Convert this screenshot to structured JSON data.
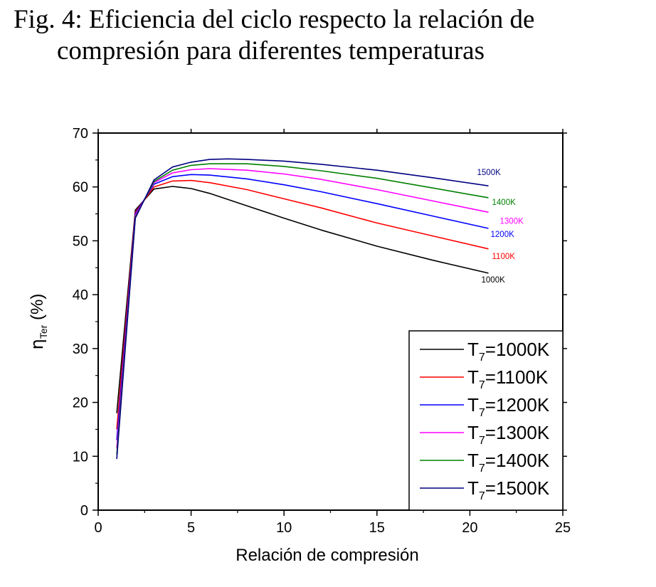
{
  "figure": {
    "title_line1": "Fig. 4: Eficiencia del ciclo respecto la relación de",
    "title_line2": "compresión para diferentes temperaturas"
  },
  "chart_data": {
    "type": "line",
    "xlabel": "Relación de compresión",
    "ylabel_main": "η",
    "ylabel_sub": "Ter",
    "ylabel_unit": " (%)",
    "xlim": [
      0,
      25
    ],
    "ylim": [
      0,
      70
    ],
    "x_ticks": [
      0,
      5,
      10,
      15,
      20,
      25
    ],
    "y_ticks": [
      0,
      10,
      20,
      30,
      40,
      50,
      60,
      70
    ],
    "grid": false,
    "legend_position": "bottom-right",
    "series": [
      {
        "name": "1000K",
        "legend_prefix": "T",
        "legend_sub": "7",
        "legend_suffix": "=1000K",
        "end_label": "1000K",
        "color": "#000000",
        "points": [
          [
            1,
            18.0
          ],
          [
            2,
            55.7
          ],
          [
            3,
            59.6
          ],
          [
            4,
            60.1
          ],
          [
            5,
            59.7
          ],
          [
            6,
            58.8
          ],
          [
            8,
            56.5
          ],
          [
            10,
            54.2
          ],
          [
            12,
            52.0
          ],
          [
            15,
            49.0
          ],
          [
            18,
            46.4
          ],
          [
            21,
            44.0
          ]
        ]
      },
      {
        "name": "1100K",
        "legend_prefix": "T",
        "legend_sub": "7",
        "legend_suffix": "=1100K",
        "end_label": "1100K",
        "color": "#ff0000",
        "points": [
          [
            1,
            15.0
          ],
          [
            2,
            55.3
          ],
          [
            3,
            60.0
          ],
          [
            4,
            61.1
          ],
          [
            5,
            61.2
          ],
          [
            6,
            60.8
          ],
          [
            8,
            59.5
          ],
          [
            10,
            57.8
          ],
          [
            12,
            56.1
          ],
          [
            15,
            53.3
          ],
          [
            18,
            50.9
          ],
          [
            21,
            48.5
          ]
        ]
      },
      {
        "name": "1200K",
        "legend_prefix": "T",
        "legend_sub": "7",
        "legend_suffix": "=1200K",
        "end_label": "1200K",
        "color": "#0000ff",
        "points": [
          [
            1,
            13.0
          ],
          [
            2,
            55.0
          ],
          [
            3,
            60.5
          ],
          [
            4,
            61.9
          ],
          [
            5,
            62.3
          ],
          [
            6,
            62.2
          ],
          [
            8,
            61.5
          ],
          [
            10,
            60.4
          ],
          [
            12,
            59.1
          ],
          [
            15,
            56.9
          ],
          [
            18,
            54.6
          ],
          [
            21,
            52.3
          ]
        ]
      },
      {
        "name": "1300K",
        "legend_prefix": "T",
        "legend_sub": "7",
        "legend_suffix": "=1300K",
        "end_label": "1300K",
        "color": "#ff00ff",
        "points": [
          [
            1,
            11.5
          ],
          [
            2,
            54.7
          ],
          [
            3,
            60.8
          ],
          [
            4,
            62.6
          ],
          [
            5,
            63.2
          ],
          [
            6,
            63.4
          ],
          [
            8,
            63.1
          ],
          [
            10,
            62.4
          ],
          [
            12,
            61.4
          ],
          [
            15,
            59.5
          ],
          [
            18,
            57.4
          ],
          [
            21,
            55.3
          ]
        ]
      },
      {
        "name": "1400K",
        "legend_prefix": "T",
        "legend_sub": "7",
        "legend_suffix": "=1400K",
        "end_label": "1400K",
        "color": "#008000",
        "points": [
          [
            1,
            10.3
          ],
          [
            2,
            54.4
          ],
          [
            3,
            61.0
          ],
          [
            4,
            63.1
          ],
          [
            5,
            64.0
          ],
          [
            6,
            64.3
          ],
          [
            8,
            64.3
          ],
          [
            10,
            63.8
          ],
          [
            12,
            63.0
          ],
          [
            15,
            61.6
          ],
          [
            18,
            59.8
          ],
          [
            21,
            58.0
          ]
        ]
      },
      {
        "name": "1500K",
        "legend_prefix": "T",
        "legend_sub": "7",
        "legend_suffix": "=1500K",
        "end_label": "1500K",
        "color": "#000080",
        "points": [
          [
            1,
            9.5
          ],
          [
            2,
            54.2
          ],
          [
            3,
            61.3
          ],
          [
            4,
            63.7
          ],
          [
            5,
            64.6
          ],
          [
            6,
            65.1
          ],
          [
            7,
            65.2
          ],
          [
            8,
            65.1
          ],
          [
            10,
            64.8
          ],
          [
            12,
            64.2
          ],
          [
            15,
            63.1
          ],
          [
            18,
            61.7
          ],
          [
            21,
            60.2
          ]
        ]
      }
    ]
  }
}
